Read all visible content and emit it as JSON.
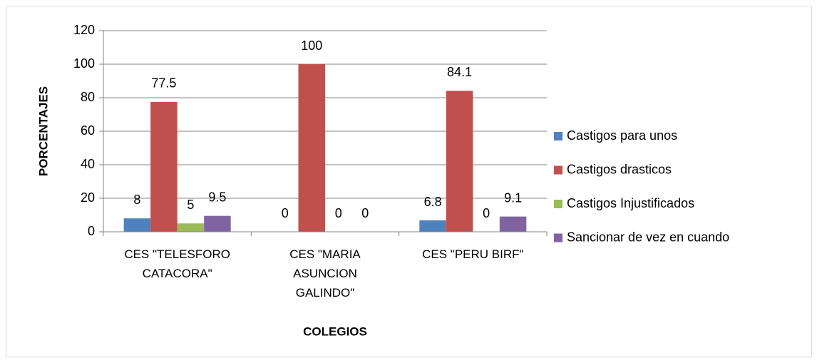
{
  "chart_data": {
    "type": "bar",
    "categories": [
      "CES \"TELESFORO CATACORA\"",
      "CES \"MARIA ASUNCION GALINDO\"",
      "CES \"PERU BIRF\""
    ],
    "series": [
      {
        "name": "Castigos para unos",
        "color": "#4f81bd",
        "values": [
          8,
          0,
          6.8
        ]
      },
      {
        "name": "Castigos drasticos",
        "color": "#c0504d",
        "values": [
          77.5,
          100,
          84.1
        ]
      },
      {
        "name": "Castigos Injustificados",
        "color": "#9bbb59",
        "values": [
          5,
          0,
          0
        ]
      },
      {
        "name": "Sancionar de vez en cuando",
        "color": "#8064a2",
        "values": [
          9.5,
          0,
          9.1
        ]
      }
    ],
    "ylim": [
      0,
      120
    ],
    "yticks": [
      0,
      20,
      40,
      60,
      80,
      100,
      120
    ],
    "grid": true,
    "ylabel": "PORCENTAJES",
    "xlabel": "COLEGIOS",
    "legend": "right"
  }
}
